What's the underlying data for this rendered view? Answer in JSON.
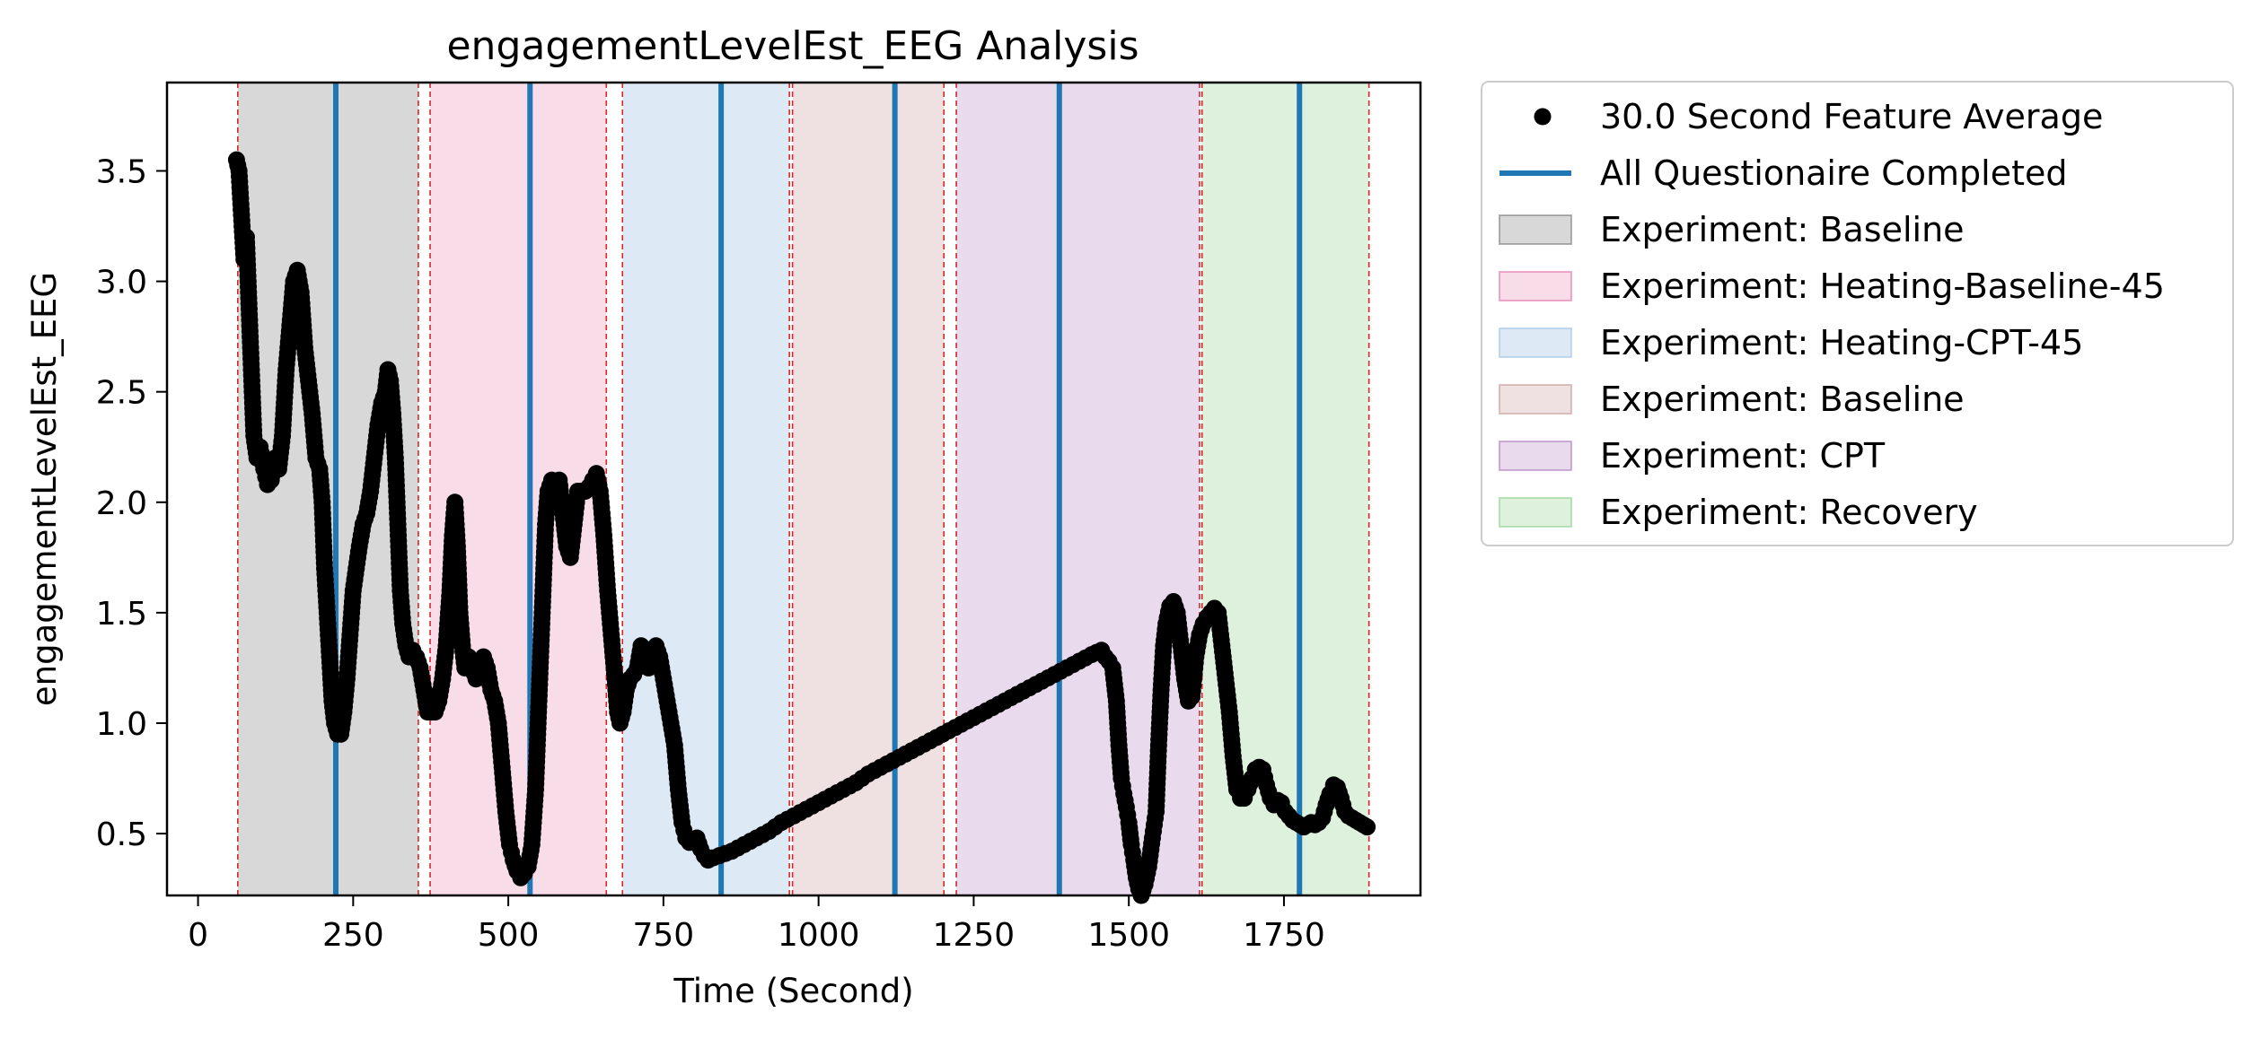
{
  "chart_data": {
    "type": "scatter",
    "title": "engagementLevelEst_EEG Analysis",
    "xlabel": "Time (Second)",
    "ylabel": "engagementLevelEst_EEG",
    "xlim": [
      -50,
      1970
    ],
    "ylim": [
      0.22,
      3.9
    ],
    "x_ticks": [
      0,
      250,
      500,
      750,
      1000,
      1250,
      1500,
      1750
    ],
    "y_ticks": [
      0.5,
      1.0,
      1.5,
      2.0,
      2.5,
      3.0,
      3.5
    ],
    "y_tick_labels": [
      "0.5",
      "1.0",
      "1.5",
      "2.0",
      "2.5",
      "3.0",
      "3.5"
    ],
    "grid": false,
    "legend_position": "outside-right",
    "series": [
      {
        "name": "30.0 Second Feature Average",
        "color": "#000000",
        "marker": "circle",
        "points": [
          [
            62,
            3.55
          ],
          [
            66,
            3.5
          ],
          [
            70,
            3.3
          ],
          [
            74,
            3.1
          ],
          [
            78,
            3.2
          ],
          [
            82,
            2.9
          ],
          [
            86,
            2.6
          ],
          [
            90,
            2.3
          ],
          [
            95,
            2.2
          ],
          [
            100,
            2.25
          ],
          [
            106,
            2.15
          ],
          [
            112,
            2.08
          ],
          [
            118,
            2.1
          ],
          [
            124,
            2.2
          ],
          [
            130,
            2.15
          ],
          [
            136,
            2.3
          ],
          [
            142,
            2.6
          ],
          [
            148,
            2.8
          ],
          [
            154,
            3.0
          ],
          [
            160,
            3.05
          ],
          [
            166,
            2.95
          ],
          [
            172,
            2.7
          ],
          [
            178,
            2.55
          ],
          [
            184,
            2.4
          ],
          [
            190,
            2.2
          ],
          [
            196,
            2.15
          ],
          [
            200,
            2.0
          ],
          [
            204,
            1.7
          ],
          [
            208,
            1.5
          ],
          [
            212,
            1.3
          ],
          [
            216,
            1.1
          ],
          [
            220,
            1.0
          ],
          [
            225,
            0.95
          ],
          [
            230,
            0.95
          ],
          [
            235,
            1.05
          ],
          [
            240,
            1.2
          ],
          [
            245,
            1.4
          ],
          [
            250,
            1.6
          ],
          [
            255,
            1.7
          ],
          [
            260,
            1.8
          ],
          [
            266,
            1.9
          ],
          [
            272,
            1.95
          ],
          [
            278,
            2.05
          ],
          [
            284,
            2.2
          ],
          [
            290,
            2.35
          ],
          [
            296,
            2.45
          ],
          [
            302,
            2.5
          ],
          [
            306,
            2.6
          ],
          [
            310,
            2.55
          ],
          [
            314,
            2.4
          ],
          [
            318,
            2.2
          ],
          [
            322,
            1.9
          ],
          [
            326,
            1.6
          ],
          [
            330,
            1.45
          ],
          [
            335,
            1.35
          ],
          [
            340,
            1.3
          ],
          [
            346,
            1.33
          ],
          [
            352,
            1.3
          ],
          [
            358,
            1.25
          ],
          [
            364,
            1.15
          ],
          [
            370,
            1.05
          ],
          [
            376,
            1.05
          ],
          [
            382,
            1.05
          ],
          [
            388,
            1.1
          ],
          [
            394,
            1.2
          ],
          [
            400,
            1.35
          ],
          [
            406,
            1.6
          ],
          [
            410,
            1.85
          ],
          [
            414,
            2.0
          ],
          [
            418,
            1.8
          ],
          [
            422,
            1.5
          ],
          [
            426,
            1.35
          ],
          [
            430,
            1.25
          ],
          [
            436,
            1.3
          ],
          [
            442,
            1.25
          ],
          [
            448,
            1.2
          ],
          [
            454,
            1.25
          ],
          [
            460,
            1.3
          ],
          [
            466,
            1.25
          ],
          [
            472,
            1.15
          ],
          [
            478,
            1.1
          ],
          [
            484,
            1.0
          ],
          [
            490,
            0.8
          ],
          [
            496,
            0.6
          ],
          [
            502,
            0.45
          ],
          [
            508,
            0.38
          ],
          [
            514,
            0.33
          ],
          [
            520,
            0.3
          ],
          [
            526,
            0.32
          ],
          [
            532,
            0.35
          ],
          [
            538,
            0.45
          ],
          [
            544,
            0.7
          ],
          [
            548,
            1.0
          ],
          [
            552,
            1.3
          ],
          [
            556,
            1.6
          ],
          [
            560,
            1.9
          ],
          [
            564,
            2.05
          ],
          [
            570,
            2.1
          ],
          [
            576,
            2.05
          ],
          [
            582,
            2.1
          ],
          [
            588,
            1.95
          ],
          [
            594,
            1.8
          ],
          [
            600,
            1.75
          ],
          [
            606,
            1.9
          ],
          [
            612,
            2.05
          ],
          [
            618,
            2.05
          ],
          [
            624,
            2.05
          ],
          [
            630,
            2.07
          ],
          [
            636,
            2.1
          ],
          [
            642,
            2.13
          ],
          [
            648,
            2.05
          ],
          [
            654,
            1.85
          ],
          [
            660,
            1.6
          ],
          [
            666,
            1.4
          ],
          [
            672,
            1.2
          ],
          [
            676,
            1.05
          ],
          [
            680,
            1.0
          ],
          [
            685,
            1.05
          ],
          [
            690,
            1.15
          ],
          [
            696,
            1.2
          ],
          [
            702,
            1.22
          ],
          [
            708,
            1.25
          ],
          [
            714,
            1.35
          ],
          [
            720,
            1.3
          ],
          [
            726,
            1.25
          ],
          [
            732,
            1.3
          ],
          [
            738,
            1.35
          ],
          [
            744,
            1.3
          ],
          [
            750,
            1.2
          ],
          [
            756,
            1.1
          ],
          [
            762,
            1.0
          ],
          [
            768,
            0.9
          ],
          [
            774,
            0.7
          ],
          [
            780,
            0.55
          ],
          [
            786,
            0.48
          ],
          [
            792,
            0.46
          ],
          [
            798,
            0.47
          ],
          [
            804,
            0.48
          ],
          [
            810,
            0.43
          ],
          [
            816,
            0.4
          ],
          [
            822,
            0.38
          ],
          [
            830,
            0.39
          ],
          [
            840,
            0.4
          ],
          [
            860,
            0.42
          ],
          [
            880,
            0.45
          ],
          [
            900,
            0.48
          ],
          [
            920,
            0.51
          ],
          [
            940,
            0.55
          ],
          [
            960,
            0.58
          ],
          [
            980,
            0.61
          ],
          [
            1000,
            0.64
          ],
          [
            1020,
            0.67
          ],
          [
            1040,
            0.7
          ],
          [
            1060,
            0.73
          ],
          [
            1080,
            0.77
          ],
          [
            1100,
            0.8
          ],
          [
            1120,
            0.83
          ],
          [
            1140,
            0.86
          ],
          [
            1160,
            0.89
          ],
          [
            1180,
            0.92
          ],
          [
            1200,
            0.95
          ],
          [
            1220,
            0.98
          ],
          [
            1240,
            1.01
          ],
          [
            1260,
            1.04
          ],
          [
            1280,
            1.07
          ],
          [
            1300,
            1.1
          ],
          [
            1320,
            1.13
          ],
          [
            1340,
            1.16
          ],
          [
            1360,
            1.19
          ],
          [
            1380,
            1.22
          ],
          [
            1400,
            1.25
          ],
          [
            1420,
            1.28
          ],
          [
            1440,
            1.31
          ],
          [
            1456,
            1.33
          ],
          [
            1462,
            1.3
          ],
          [
            1468,
            1.28
          ],
          [
            1474,
            1.25
          ],
          [
            1480,
            1.1
          ],
          [
            1484,
            0.9
          ],
          [
            1488,
            0.75
          ],
          [
            1492,
            0.68
          ],
          [
            1496,
            0.62
          ],
          [
            1500,
            0.55
          ],
          [
            1504,
            0.45
          ],
          [
            1508,
            0.38
          ],
          [
            1512,
            0.3
          ],
          [
            1516,
            0.25
          ],
          [
            1520,
            0.22
          ],
          [
            1526,
            0.27
          ],
          [
            1532,
            0.35
          ],
          [
            1538,
            0.48
          ],
          [
            1544,
            0.6
          ],
          [
            1548,
            0.9
          ],
          [
            1552,
            1.15
          ],
          [
            1556,
            1.35
          ],
          [
            1560,
            1.45
          ],
          [
            1566,
            1.53
          ],
          [
            1572,
            1.55
          ],
          [
            1578,
            1.5
          ],
          [
            1584,
            1.35
          ],
          [
            1590,
            1.2
          ],
          [
            1596,
            1.1
          ],
          [
            1602,
            1.12
          ],
          [
            1608,
            1.3
          ],
          [
            1614,
            1.4
          ],
          [
            1620,
            1.45
          ],
          [
            1626,
            1.48
          ],
          [
            1632,
            1.5
          ],
          [
            1638,
            1.52
          ],
          [
            1644,
            1.5
          ],
          [
            1650,
            1.35
          ],
          [
            1656,
            1.2
          ],
          [
            1662,
            1.05
          ],
          [
            1668,
            0.85
          ],
          [
            1674,
            0.7
          ],
          [
            1680,
            0.66
          ],
          [
            1686,
            0.66
          ],
          [
            1692,
            0.7
          ],
          [
            1698,
            0.75
          ],
          [
            1704,
            0.79
          ],
          [
            1710,
            0.8
          ],
          [
            1716,
            0.79
          ],
          [
            1722,
            0.72
          ],
          [
            1728,
            0.66
          ],
          [
            1734,
            0.63
          ],
          [
            1740,
            0.65
          ],
          [
            1746,
            0.64
          ],
          [
            1752,
            0.6
          ],
          [
            1758,
            0.58
          ],
          [
            1764,
            0.56
          ],
          [
            1770,
            0.55
          ],
          [
            1776,
            0.54
          ],
          [
            1782,
            0.53
          ],
          [
            1788,
            0.54
          ],
          [
            1794,
            0.55
          ],
          [
            1800,
            0.54
          ],
          [
            1806,
            0.55
          ],
          [
            1812,
            0.57
          ],
          [
            1818,
            0.63
          ],
          [
            1824,
            0.68
          ],
          [
            1830,
            0.72
          ],
          [
            1836,
            0.71
          ],
          [
            1842,
            0.66
          ],
          [
            1848,
            0.6
          ],
          [
            1854,
            0.58
          ],
          [
            1860,
            0.57
          ],
          [
            1866,
            0.56
          ],
          [
            1872,
            0.55
          ],
          [
            1878,
            0.54
          ],
          [
            1884,
            0.53
          ]
        ]
      }
    ],
    "questionnaire_lines": {
      "name": "All Questionaire Completed",
      "color": "#1f77b4",
      "x": [
        222,
        535,
        843,
        1123,
        1388,
        1775
      ]
    },
    "experiment_spans": [
      {
        "label": "Experiment: Baseline",
        "start": 64,
        "end": 355,
        "color": "#7f7f7f",
        "alpha": 0.3
      },
      {
        "label": "Experiment: Heating-Baseline-45",
        "start": 374,
        "end": 658,
        "color": "#e377a8",
        "alpha": 0.25
      },
      {
        "label": "Experiment: Heating-CPT-45",
        "start": 684,
        "end": 953,
        "color": "#9ec3e6",
        "alpha": 0.35
      },
      {
        "label": "Experiment: Baseline",
        "start": 958,
        "end": 1202,
        "color": "#c99a9a",
        "alpha": 0.3
      },
      {
        "label": "Experiment: CPT",
        "start": 1222,
        "end": 1614,
        "color": "#b07cc0",
        "alpha": 0.28
      },
      {
        "label": "Experiment: Recovery",
        "start": 1618,
        "end": 1887,
        "color": "#8fd08f",
        "alpha": 0.3
      }
    ],
    "span_boundary_lines": {
      "color": "#d62728",
      "x": [
        64,
        355,
        374,
        658,
        684,
        953,
        958,
        1202,
        1222,
        1614,
        1618,
        1887
      ]
    },
    "legend": [
      {
        "label": "30.0 Second Feature Average",
        "kind": "marker",
        "color": "#000000"
      },
      {
        "label": "All Questionaire Completed",
        "kind": "line",
        "color": "#1f77b4"
      },
      {
        "label": "Experiment: Baseline",
        "kind": "patch",
        "color": "#7f7f7f",
        "alpha": 0.3
      },
      {
        "label": "Experiment: Heating-Baseline-45",
        "kind": "patch",
        "color": "#e377a8",
        "alpha": 0.25
      },
      {
        "label": "Experiment: Heating-CPT-45",
        "kind": "patch",
        "color": "#9ec3e6",
        "alpha": 0.35
      },
      {
        "label": "Experiment: Baseline",
        "kind": "patch",
        "color": "#c99a9a",
        "alpha": 0.3
      },
      {
        "label": "Experiment: CPT",
        "kind": "patch",
        "color": "#b07cc0",
        "alpha": 0.28
      },
      {
        "label": "Experiment: Recovery",
        "kind": "patch",
        "color": "#8fd08f",
        "alpha": 0.3
      }
    ]
  }
}
